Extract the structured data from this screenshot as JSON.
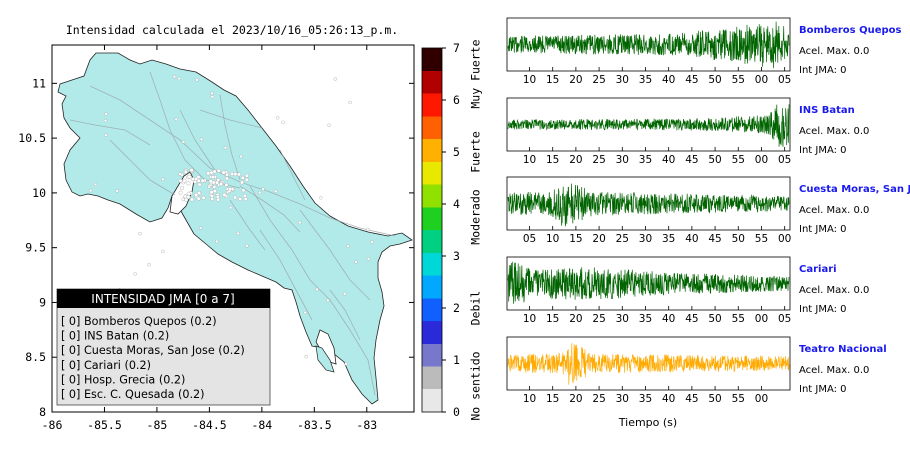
{
  "map": {
    "title": "Intensidad calculada el 2023/10/16_05:26:13_p.m.",
    "x_ticks": [
      "-86",
      "-85.5",
      "-85",
      "-84.5",
      "-84",
      "-83.5",
      "-83"
    ],
    "y_ticks": [
      "8",
      "8.5",
      "9",
      "9.5",
      "10",
      "10.5",
      "11"
    ],
    "xlim": [
      -86,
      -82.55
    ],
    "ylim": [
      8,
      11.35
    ],
    "land_color": "#b2eaea",
    "legend": {
      "title": "INTENSIDAD JMA [0 a 7]",
      "items": [
        "[ 0]  Bomberos Quepos (0.2)",
        "[ 0]  INS Batan (0.2)",
        "[ 0]  Cuesta Moras, San Jose (0.2)",
        "[ 0]  Cariari (0.2)",
        "[ 0]  Hosp. Grecia (0.2)",
        "[ 0]  Esc. C. Quesada (0.2)"
      ]
    }
  },
  "colorbar": {
    "ticks": [
      "0",
      "1",
      "2",
      "3",
      "4",
      "5",
      "6",
      "7"
    ],
    "range": [
      0,
      7
    ],
    "labels": [
      "No sentido",
      "Debil",
      "Moderado",
      "Fuerte",
      "Muy Fuerte"
    ],
    "label_centers": [
      0.5,
      2.0,
      3.75,
      5.0,
      6.5
    ],
    "colors": [
      "#e8e8e8",
      "#bbbbbb",
      "#7777cc",
      "#2a2ad8",
      "#1060ff",
      "#00a8ff",
      "#00d8d8",
      "#00d080",
      "#20d020",
      "#90e000",
      "#e8e800",
      "#ffb000",
      "#ff6000",
      "#ff1800",
      "#b00000",
      "#300000"
    ]
  },
  "chart_data": {
    "type": "line",
    "xlabel": "Tiempo (s)",
    "series": [
      {
        "name": "Bomberos Quepos",
        "accel": "Acel. Max. 0.0",
        "jma": "Int JMA: 0",
        "color": "#006400",
        "tick_labels": [
          "10",
          "15",
          "20",
          "25",
          "30",
          "35",
          "40",
          "45",
          "50",
          "55",
          "00",
          "05"
        ],
        "amplitude_profile": [
          [
            0,
            0.35
          ],
          [
            0.3,
            0.4
          ],
          [
            0.6,
            0.45
          ],
          [
            0.85,
            0.8
          ],
          [
            0.95,
            1.0
          ],
          [
            1,
            0.6
          ]
        ]
      },
      {
        "name": "INS Batan",
        "accel": "Acel. Max. 0.0",
        "jma": "Int JMA: 0",
        "color": "#006400",
        "tick_labels": [
          "10",
          "15",
          "20",
          "25",
          "30",
          "35",
          "40",
          "45",
          "50",
          "55",
          "00",
          "05"
        ],
        "amplitude_profile": [
          [
            0,
            0.2
          ],
          [
            0.7,
            0.25
          ],
          [
            0.92,
            0.4
          ],
          [
            0.97,
            1.0
          ],
          [
            1,
            0.9
          ]
        ]
      },
      {
        "name": "Cuesta Moras, San Jose",
        "accel": "Acel. Max. 0.0",
        "jma": "Int JMA: 0",
        "color": "#006400",
        "tick_labels": [
          "05",
          "10",
          "15",
          "20",
          "25",
          "30",
          "35",
          "40",
          "45",
          "50",
          "55",
          "00"
        ],
        "amplitude_profile": [
          [
            0,
            0.45
          ],
          [
            0.15,
            0.5
          ],
          [
            0.2,
            1.0
          ],
          [
            0.3,
            0.5
          ],
          [
            1,
            0.3
          ]
        ]
      },
      {
        "name": "Cariari",
        "accel": "Acel. Max. 0.0",
        "jma": "Int JMA: 0",
        "color": "#006400",
        "tick_labels": [
          "10",
          "15",
          "20",
          "25",
          "30",
          "35",
          "40",
          "45",
          "50",
          "55",
          "00",
          "05"
        ],
        "amplitude_profile": [
          [
            0,
            1.0
          ],
          [
            0.1,
            0.6
          ],
          [
            0.3,
            0.7
          ],
          [
            0.6,
            0.45
          ],
          [
            1,
            0.3
          ]
        ]
      },
      {
        "name": "Teatro Nacional",
        "accel": "Acel. Max. 0.0",
        "jma": "Int JMA: 0",
        "color": "#ffaa00",
        "tick_labels": [
          "10",
          "15",
          "20",
          "25",
          "30",
          "35",
          "40",
          "45",
          "50",
          "55",
          "00"
        ],
        "amplitude_profile": [
          [
            0,
            0.35
          ],
          [
            0.2,
            0.45
          ],
          [
            0.22,
            1.0
          ],
          [
            0.3,
            0.4
          ],
          [
            1,
            0.3
          ]
        ]
      }
    ]
  }
}
